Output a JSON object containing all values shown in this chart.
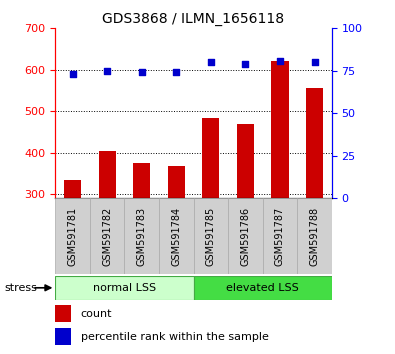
{
  "title": "GDS3868 / ILMN_1656118",
  "categories": [
    "GSM591781",
    "GSM591782",
    "GSM591783",
    "GSM591784",
    "GSM591785",
    "GSM591786",
    "GSM591787",
    "GSM591788"
  ],
  "bar_values": [
    335,
    405,
    375,
    368,
    483,
    468,
    622,
    557
  ],
  "scatter_values_pct": [
    73,
    75,
    74,
    74,
    80,
    79,
    81,
    80
  ],
  "bar_color": "#cc0000",
  "scatter_color": "#0000cc",
  "ylim_left": [
    290,
    700
  ],
  "ylim_right": [
    0,
    100
  ],
  "yticks_left": [
    300,
    400,
    500,
    600,
    700
  ],
  "yticks_right": [
    0,
    25,
    50,
    75,
    100
  ],
  "group_labels": [
    "normal LSS",
    "elevated LSS"
  ],
  "group_light_color": "#ccffcc",
  "group_dark_color": "#44dd44",
  "group_border_color": "#44aa44",
  "stress_label": "stress",
  "legend_count_label": "count",
  "legend_pct_label": "percentile rank within the sample",
  "bar_width": 0.5,
  "xtick_bg_color": "#d0d0d0",
  "xtick_border_color": "#aaaaaa"
}
